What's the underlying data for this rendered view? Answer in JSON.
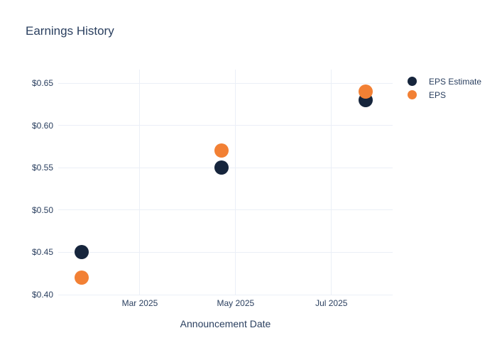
{
  "chart_data": {
    "type": "scatter",
    "title": "Earnings History",
    "xlabel": "Announcement Date",
    "ylabel": "",
    "grid": true,
    "legend_position": "right-top",
    "x_range": [
      "2025-01-08",
      "2025-08-09"
    ],
    "y_range": [
      0.4,
      0.666
    ],
    "x_ticks": [
      {
        "label": "Mar 2025",
        "date": "2025-03-01"
      },
      {
        "label": "May 2025",
        "date": "2025-05-01"
      },
      {
        "label": "Jul 2025",
        "date": "2025-07-01"
      }
    ],
    "y_ticks": [
      {
        "label": "$0.40",
        "value": 0.4
      },
      {
        "label": "$0.45",
        "value": 0.45
      },
      {
        "label": "$0.50",
        "value": 0.5
      },
      {
        "label": "$0.55",
        "value": 0.55
      },
      {
        "label": "$0.60",
        "value": 0.6
      },
      {
        "label": "$0.65",
        "value": 0.65
      }
    ],
    "series": [
      {
        "name": "EPS Estimate",
        "color": "#16253c",
        "marker_size": 20,
        "points": [
          {
            "x": "2025-01-23",
            "y": 0.45
          },
          {
            "x": "2025-04-22",
            "y": 0.55
          },
          {
            "x": "2025-07-23",
            "y": 0.63
          }
        ]
      },
      {
        "name": "EPS",
        "color": "#f28034",
        "marker_size": 20,
        "points": [
          {
            "x": "2025-01-23",
            "y": 0.42
          },
          {
            "x": "2025-04-22",
            "y": 0.57
          },
          {
            "x": "2025-07-23",
            "y": 0.64
          }
        ]
      }
    ],
    "colors": {
      "text": "#2a3f5f",
      "gridline": "#ebeff7",
      "background": "#ffffff"
    }
  }
}
